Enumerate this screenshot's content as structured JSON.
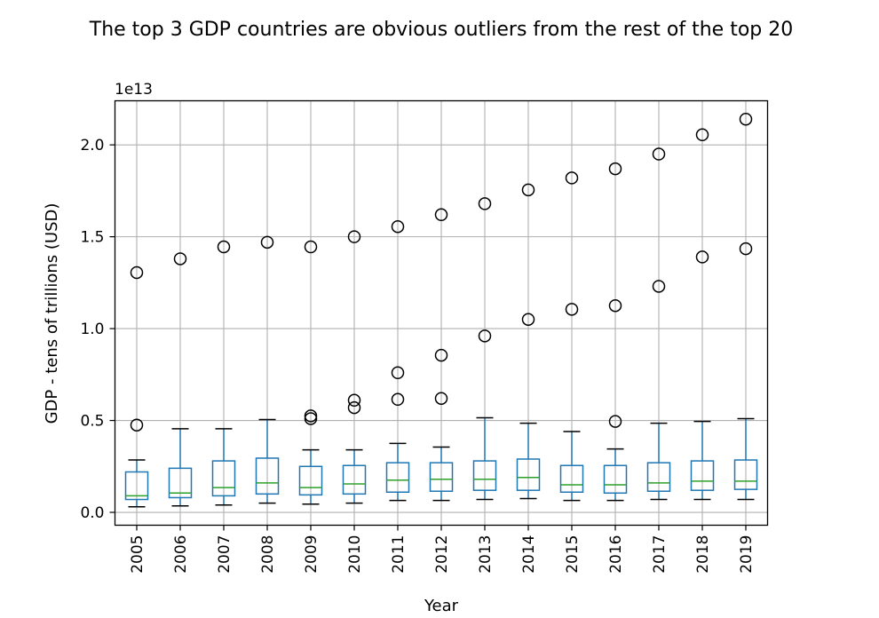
{
  "chart_data": {
    "type": "box",
    "title": "The top 3 GDP countries are obvious outliers from the rest of the top 20",
    "xlabel": "Year",
    "ylabel": "GDP - tens of trillions (USD)",
    "y_offset_label": "1e13",
    "y_unit_scale": 10000000000000.0,
    "ylim": [
      -0.07,
      2.24
    ],
    "yticks": [
      0.0,
      0.5,
      1.0,
      1.5,
      2.0
    ],
    "ytick_labels": [
      "0.0",
      "0.5",
      "1.0",
      "1.5",
      "2.0"
    ],
    "grid": true,
    "colors": {
      "box": "#1f77b4",
      "median": "#2ca02c",
      "cap": "#000000",
      "outlier": "#000000",
      "grid": "#b0b0b0"
    },
    "categories": [
      "2005",
      "2006",
      "2007",
      "2008",
      "2009",
      "2010",
      "2011",
      "2012",
      "2013",
      "2014",
      "2015",
      "2016",
      "2017",
      "2018",
      "2019"
    ],
    "boxes": [
      {
        "year": "2005",
        "whislo": 0.03,
        "q1": 0.07,
        "med": 0.09,
        "q3": 0.22,
        "whishi": 0.285,
        "fliers": [
          0.475,
          1.305
        ]
      },
      {
        "year": "2006",
        "whislo": 0.035,
        "q1": 0.08,
        "med": 0.105,
        "q3": 0.24,
        "whishi": 0.455,
        "fliers": [
          1.38
        ]
      },
      {
        "year": "2007",
        "whislo": 0.04,
        "q1": 0.09,
        "med": 0.135,
        "q3": 0.28,
        "whishi": 0.455,
        "fliers": [
          1.445
        ]
      },
      {
        "year": "2008",
        "whislo": 0.05,
        "q1": 0.1,
        "med": 0.16,
        "q3": 0.295,
        "whishi": 0.505,
        "fliers": [
          1.47
        ]
      },
      {
        "year": "2009",
        "whislo": 0.045,
        "q1": 0.095,
        "med": 0.135,
        "q3": 0.25,
        "whishi": 0.34,
        "fliers": [
          0.51,
          0.525,
          1.445
        ]
      },
      {
        "year": "2010",
        "whislo": 0.05,
        "q1": 0.1,
        "med": 0.155,
        "q3": 0.255,
        "whishi": 0.34,
        "fliers": [
          0.57,
          0.61,
          1.5
        ]
      },
      {
        "year": "2011",
        "whislo": 0.065,
        "q1": 0.11,
        "med": 0.175,
        "q3": 0.27,
        "whishi": 0.375,
        "fliers": [
          0.615,
          0.76,
          1.555
        ]
      },
      {
        "year": "2012",
        "whislo": 0.065,
        "q1": 0.115,
        "med": 0.18,
        "q3": 0.27,
        "whishi": 0.355,
        "fliers": [
          0.62,
          0.855,
          1.62
        ]
      },
      {
        "year": "2013",
        "whislo": 0.07,
        "q1": 0.12,
        "med": 0.18,
        "q3": 0.28,
        "whishi": 0.515,
        "fliers": [
          0.96,
          1.68
        ]
      },
      {
        "year": "2014",
        "whislo": 0.075,
        "q1": 0.12,
        "med": 0.19,
        "q3": 0.29,
        "whishi": 0.485,
        "fliers": [
          1.05,
          1.755
        ]
      },
      {
        "year": "2015",
        "whislo": 0.065,
        "q1": 0.11,
        "med": 0.15,
        "q3": 0.255,
        "whishi": 0.44,
        "fliers": [
          1.105,
          1.82
        ]
      },
      {
        "year": "2016",
        "whislo": 0.065,
        "q1": 0.105,
        "med": 0.15,
        "q3": 0.255,
        "whishi": 0.345,
        "fliers": [
          0.495,
          1.125,
          1.87
        ]
      },
      {
        "year": "2017",
        "whislo": 0.07,
        "q1": 0.115,
        "med": 0.16,
        "q3": 0.27,
        "whishi": 0.485,
        "fliers": [
          1.23,
          1.95
        ]
      },
      {
        "year": "2018",
        "whislo": 0.07,
        "q1": 0.12,
        "med": 0.17,
        "q3": 0.28,
        "whishi": 0.495,
        "fliers": [
          1.39,
          2.055
        ]
      },
      {
        "year": "2019",
        "whislo": 0.07,
        "q1": 0.125,
        "med": 0.17,
        "q3": 0.285,
        "whishi": 0.51,
        "fliers": [
          1.435,
          2.14
        ]
      }
    ]
  }
}
